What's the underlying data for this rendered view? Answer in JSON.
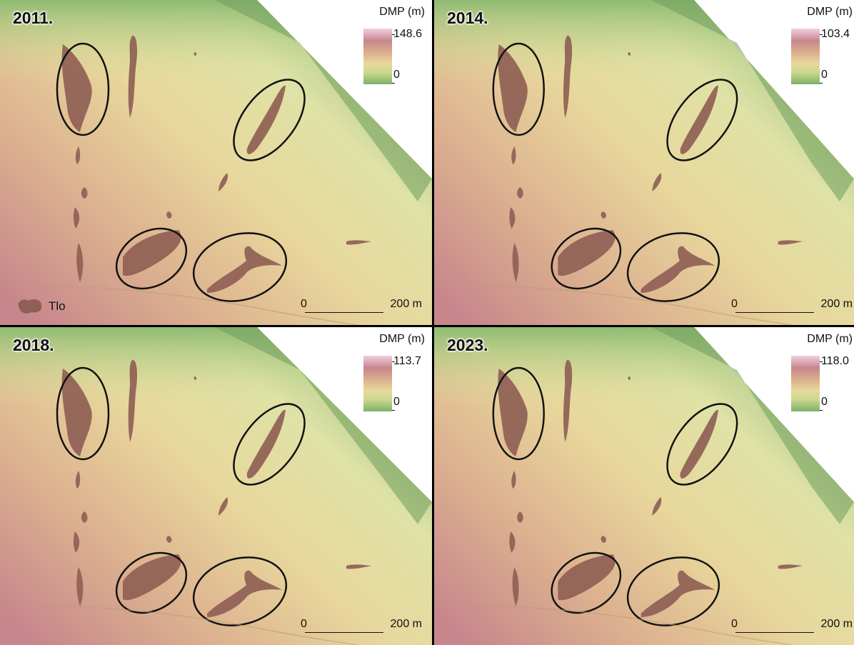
{
  "panels": [
    {
      "year": "2011.",
      "legend_title": "DMP (m)",
      "legend_max": "148.6",
      "legend_min": "0",
      "scale_zero": "0",
      "scale_end": "200 m",
      "has_feature_legend": true
    },
    {
      "year": "2014.",
      "legend_title": "DMP (m)",
      "legend_max": "103.4",
      "legend_min": "0",
      "scale_zero": "0",
      "scale_end": "200 m",
      "has_feature_legend": false
    },
    {
      "year": "2018.",
      "legend_title": "DMP (m)",
      "legend_max": "113.7",
      "legend_min": "0",
      "scale_zero": "0",
      "scale_end": "200 m",
      "has_feature_legend": false
    },
    {
      "year": "2023.",
      "legend_title": "DMP (m)",
      "legend_max": "118.0",
      "legend_min": "0",
      "scale_zero": "0",
      "scale_end": "200 m",
      "has_feature_legend": false
    }
  ],
  "feature_legend": {
    "label": "Tlo"
  },
  "colors": {
    "low": "#7fb06a",
    "mid": "#e8d79c",
    "high": "#c7868c",
    "top": "#f1cfe0",
    "feature": "#8f5f55",
    "ellipse": "#111111"
  }
}
